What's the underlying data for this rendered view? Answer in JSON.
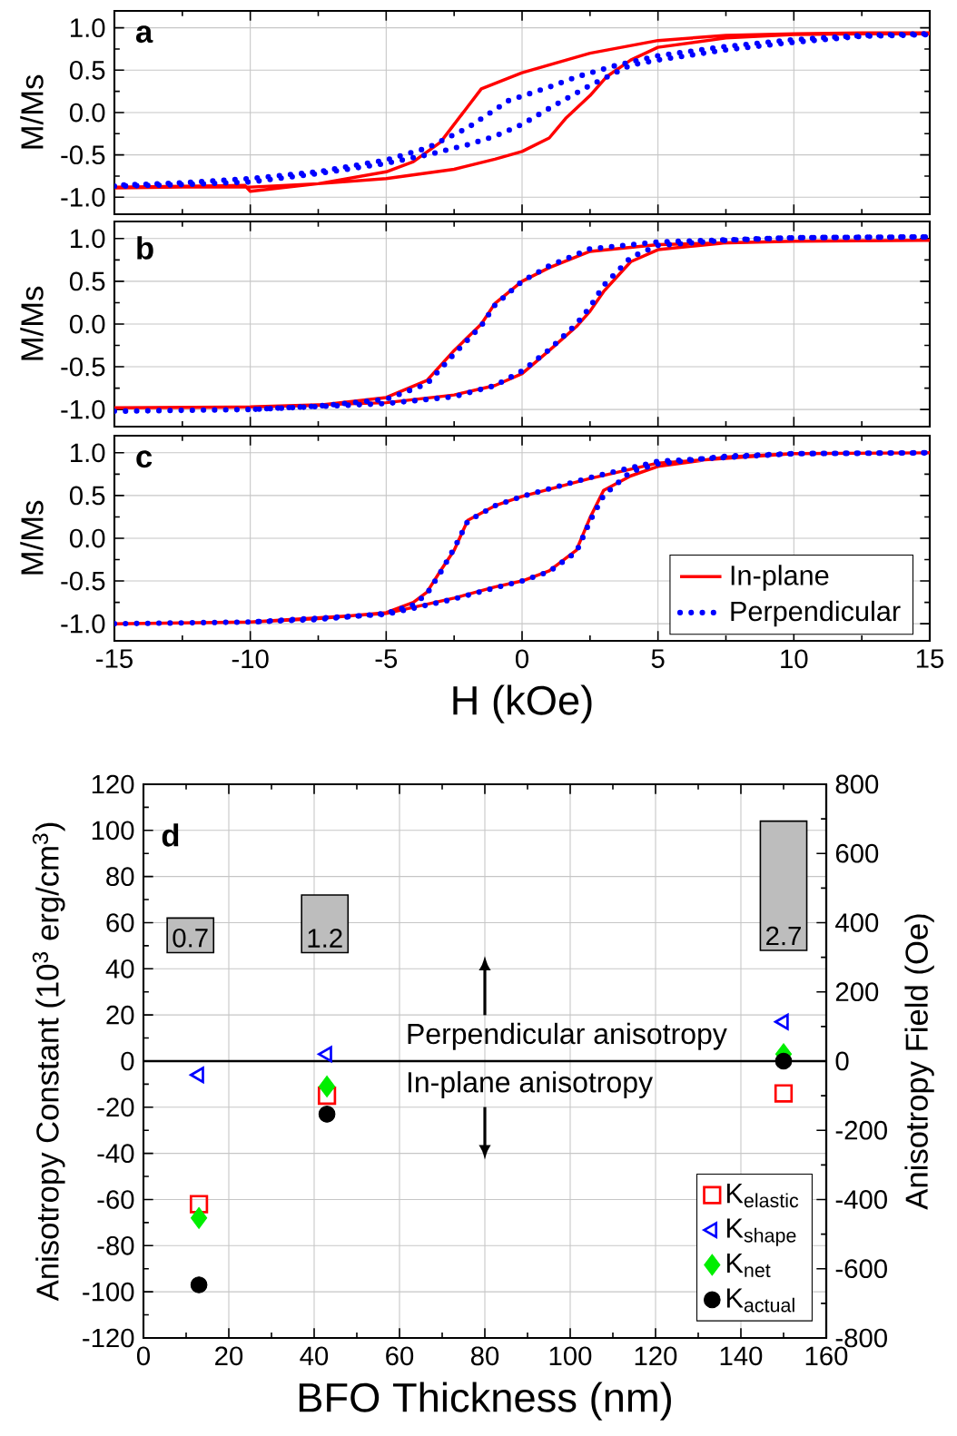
{
  "chart_data": [
    {
      "type": "line",
      "title": "a",
      "ylabel": "M/Ms",
      "xlim": [
        -15,
        15
      ],
      "xticks": [
        -15,
        -10,
        -5,
        0,
        5,
        10,
        15
      ],
      "ylim": [
        -1.2,
        1.2
      ],
      "yticks": [
        {
          "value": -1,
          "label": "-1.0"
        },
        {
          "value": -0.5,
          "label": "-0.5"
        },
        {
          "value": 0,
          "label": "0.0"
        },
        {
          "value": 0.5,
          "label": "0.5"
        },
        {
          "value": 1,
          "label": "1.0"
        }
      ],
      "grid": true,
      "tick_labels": "y",
      "series": [
        {
          "color": "#ff0000",
          "line_style": "solid",
          "x": [
            -15,
            -12.5,
            -10.2,
            -10,
            -7.5,
            -5,
            -2.5,
            -1,
            0,
            1,
            1.6,
            2.5,
            3.1,
            4,
            5,
            7.5,
            10,
            12.5,
            15,
            15,
            12.5,
            10,
            7.5,
            5,
            2.5,
            0,
            -1.5,
            -2,
            -3,
            -4,
            -5,
            -7.5,
            -10,
            -12.5,
            -15
          ],
          "values": [
            -0.88,
            -0.87,
            -0.86,
            -0.93,
            -0.84,
            -0.78,
            -0.67,
            -0.55,
            -0.46,
            -0.3,
            -0.07,
            0.2,
            0.42,
            0.62,
            0.77,
            0.88,
            0.92,
            0.93,
            0.93,
            0.94,
            0.94,
            0.93,
            0.91,
            0.85,
            0.7,
            0.47,
            0.28,
            0.07,
            -0.35,
            -0.58,
            -0.7,
            -0.84,
            -0.88,
            -0.88,
            -0.89
          ]
        },
        {
          "color": "#0000ff",
          "line_style": "dotted",
          "x": [
            -15,
            -12.5,
            -10,
            -7.5,
            -5,
            -3.5,
            -2,
            -1,
            0,
            1,
            2.5,
            4,
            5,
            7.5,
            10,
            12.5,
            15,
            15,
            12.5,
            10,
            7.5,
            5,
            3.5,
            2,
            1,
            -0.5,
            -2,
            -3.5,
            -5,
            -7.5,
            -10,
            -12.5,
            -15
          ],
          "values": [
            -0.87,
            -0.85,
            -0.82,
            -0.72,
            -0.6,
            -0.5,
            -0.38,
            -0.28,
            -0.14,
            0.05,
            0.32,
            0.56,
            0.62,
            0.74,
            0.83,
            0.9,
            0.92,
            0.93,
            0.91,
            0.86,
            0.78,
            0.67,
            0.56,
            0.42,
            0.3,
            0.14,
            -0.18,
            -0.42,
            -0.56,
            -0.7,
            -0.78,
            -0.83,
            -0.86
          ]
        }
      ]
    },
    {
      "type": "line",
      "title": "b",
      "ylabel": "M/Ms",
      "xlim": [
        -15,
        15
      ],
      "xticks": [
        -15,
        -10,
        -5,
        0,
        5,
        10,
        15
      ],
      "ylim": [
        -1.2,
        1.2
      ],
      "yticks": [
        {
          "value": -1,
          "label": "-1.0"
        },
        {
          "value": -0.5,
          "label": "-0.5"
        },
        {
          "value": 0,
          "label": "0.0"
        },
        {
          "value": 0.5,
          "label": "0.5"
        },
        {
          "value": 1,
          "label": "1.0"
        }
      ],
      "grid": true,
      "tick_labels": "y",
      "series": [
        {
          "color": "#ff0000",
          "line_style": "solid",
          "x": [
            -15,
            -10,
            -5,
            -2.5,
            -1,
            0,
            1,
            2,
            2.5,
            3,
            4,
            5,
            7.5,
            10,
            15,
            10,
            5,
            2.5,
            1,
            0,
            -1,
            -1.5,
            -2.5,
            -3.5,
            -5,
            -7.5,
            -10
          ],
          "values": [
            -0.98,
            -0.97,
            -0.92,
            -0.83,
            -0.72,
            -0.58,
            -0.31,
            -0.03,
            0.15,
            0.38,
            0.73,
            0.87,
            0.95,
            0.97,
            0.98,
            0.97,
            0.93,
            0.85,
            0.66,
            0.5,
            0.24,
            0.0,
            -0.31,
            -0.66,
            -0.86,
            -0.95,
            -0.97
          ]
        },
        {
          "color": "#0000ff",
          "line_style": "dotted",
          "x": [
            -15,
            -10,
            -5,
            -2.5,
            -1,
            0,
            1,
            2,
            2.5,
            3,
            4,
            5,
            7.5,
            10,
            15,
            10,
            5,
            2.5,
            1,
            0,
            -1,
            -1.5,
            -2.5,
            -3.5,
            -5,
            -7.5,
            -10
          ],
          "values": [
            -1.02,
            -1.0,
            -0.93,
            -0.85,
            -0.72,
            -0.55,
            -0.3,
            0.0,
            0.2,
            0.45,
            0.78,
            0.92,
            0.98,
            1.01,
            1.02,
            1.01,
            0.96,
            0.88,
            0.68,
            0.5,
            0.22,
            -0.02,
            -0.35,
            -0.7,
            -0.88,
            -0.96,
            -1.0
          ]
        }
      ]
    },
    {
      "type": "line",
      "title": "c",
      "xlabel": "H (kOe)",
      "ylabel": "M/Ms",
      "xlim": [
        -15,
        15
      ],
      "xticks": [
        -15,
        -10,
        -5,
        0,
        5,
        10,
        15
      ],
      "ylim": [
        -1.2,
        1.2
      ],
      "yticks": [
        {
          "value": -1,
          "label": "-1.0"
        },
        {
          "value": -0.5,
          "label": "-0.5"
        },
        {
          "value": 0,
          "label": "0.0"
        },
        {
          "value": 0.5,
          "label": "0.5"
        },
        {
          "value": 1,
          "label": "1.0"
        }
      ],
      "grid": true,
      "legend": "bottom right",
      "series": [
        {
          "name": "In-plane",
          "color": "#ff0000",
          "line_style": "solid",
          "x": [
            -15,
            -10,
            -5,
            -2.5,
            -1,
            0,
            1,
            2,
            2.5,
            3,
            4,
            5,
            7.5,
            10,
            15,
            10,
            5,
            2.5,
            0,
            -1,
            -2,
            -2.5,
            -3,
            -3.5,
            -4,
            -5,
            -7.5,
            -10
          ],
          "values": [
            -1.0,
            -0.98,
            -0.88,
            -0.7,
            -0.57,
            -0.5,
            -0.38,
            -0.14,
            0.24,
            0.56,
            0.73,
            0.84,
            0.95,
            0.99,
            1.0,
            0.99,
            0.88,
            0.7,
            0.49,
            0.38,
            0.21,
            -0.14,
            -0.38,
            -0.63,
            -0.75,
            -0.87,
            -0.94,
            -0.98
          ]
        },
        {
          "name": "Perpendicular",
          "color": "#0000ff",
          "line_style": "dotted",
          "x": [
            -15,
            -10,
            -5,
            -2.5,
            -1,
            0,
            1,
            2,
            2.5,
            3,
            4,
            5,
            7.5,
            10,
            15,
            10,
            5,
            2.5,
            0,
            -1,
            -2,
            -2.5,
            -3,
            -3.5,
            -4,
            -5,
            -7.5,
            -10
          ],
          "values": [
            -1.0,
            -0.98,
            -0.89,
            -0.71,
            -0.58,
            -0.5,
            -0.39,
            -0.16,
            0.2,
            0.5,
            0.78,
            0.87,
            0.96,
            0.99,
            1.0,
            0.99,
            0.9,
            0.71,
            0.49,
            0.38,
            0.2,
            -0.12,
            -0.4,
            -0.65,
            -0.78,
            -0.88,
            -0.95,
            -0.98
          ]
        }
      ]
    },
    {
      "type": "scatter",
      "title": "d",
      "xlabel": "BFO Thickness (nm)",
      "ylabel": "Anisotropy Constant (10$^{3}$ erg/cm$^{3}$)",
      "y2label": "Anisotropy Field (Oe)",
      "xlim": [
        0,
        160
      ],
      "xticks": [
        0,
        20,
        40,
        60,
        80,
        100,
        120,
        140,
        160
      ],
      "ylim": [
        -120,
        120
      ],
      "yticks": [
        -120,
        -100,
        -80,
        -60,
        -40,
        -20,
        0,
        20,
        40,
        60,
        80,
        100,
        120
      ],
      "y2lim": [
        -800,
        800
      ],
      "y2ticks": [
        -800,
        -600,
        -400,
        -200,
        0,
        200,
        400,
        600,
        800
      ],
      "grid": true,
      "legend": "bottom right",
      "ref_lines": [
        {
          "axis": "y",
          "value": 0,
          "color": "#000000"
        }
      ],
      "annotations": [
        "Perpendicular anisotropy",
        "In-plane anisotropy",
        {
          "text": "0.7",
          "x": 11,
          "y": 47
        },
        {
          "text": "1.2",
          "x": 42.5,
          "y": 47
        },
        {
          "text": "2.7",
          "x": 150,
          "y": 48
        }
      ],
      "x": [
        13,
        43,
        150
      ],
      "series": [
        {
          "type": "bar",
          "color": "#bdbdbd",
          "x": [
            11,
            42.5,
            150
          ],
          "base": [
            47,
            47,
            48
          ],
          "values": [
            15,
            25,
            56
          ]
        },
        {
          "name": "K$_{elastic}$",
          "color": "#ff0000",
          "marker": "square",
          "values": [
            -62,
            -15,
            -14
          ]
        },
        {
          "name": "K$_{shape}$",
          "color": "#0000ff",
          "marker": "triangle",
          "values": [
            -6,
            3,
            17
          ]
        },
        {
          "name": "K$_{net}$",
          "color": "#00ee00",
          "marker": "diamond",
          "values": [
            -68,
            -11,
            3
          ]
        },
        {
          "name": "K$_{actual}$",
          "color": "#000000",
          "marker": "circle",
          "values": [
            -97,
            -23,
            0
          ]
        }
      ]
    }
  ]
}
